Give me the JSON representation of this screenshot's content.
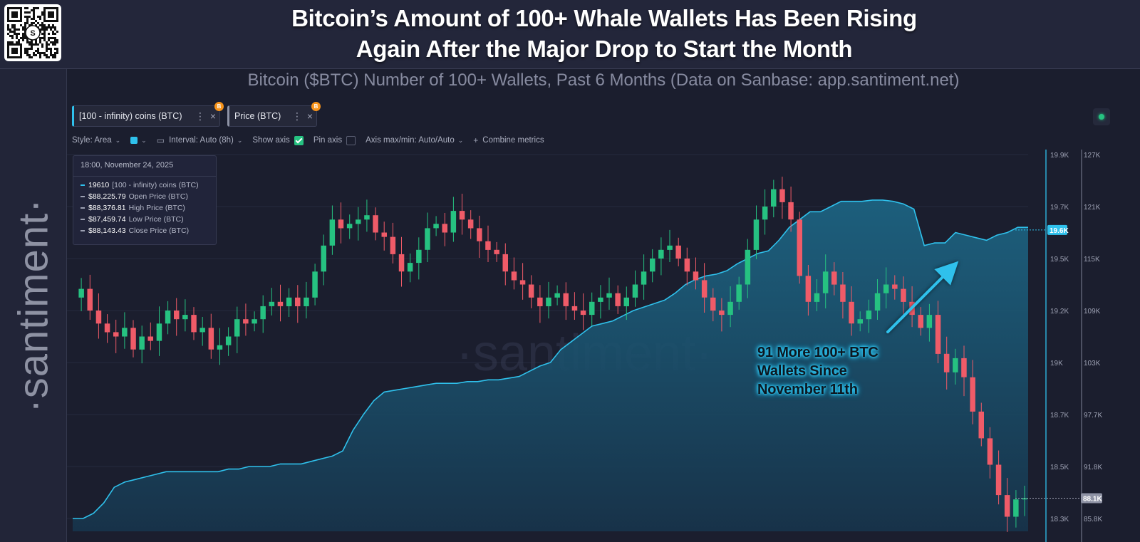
{
  "header": {
    "title_line1": "Bitcoin’s Amount of 100+ Whale Wallets Has Been Rising",
    "title_line2": "Again After the Major Drop to Start the Month",
    "qr_icon": "qr-code-santiment",
    "qr_center": "S"
  },
  "sidebar": {
    "logo_text": "·santiment·"
  },
  "subtitle": "Bitcoin ($BTC) Number of 100+ Wallets, Past 6 Months (Data on Sanbase: app.santiment.net)",
  "metrics": [
    {
      "label": "[100 - infinity) coins (BTC)",
      "color": "#2fc1ec",
      "badge": "B"
    },
    {
      "label": "Price (BTC)",
      "color": "#8e93a5",
      "badge": "B"
    }
  ],
  "toolbar": {
    "style": "Style: Area",
    "interval": "Interval: Auto (8h)",
    "show_axis": "Show axis",
    "pin_axis": "Pin axis",
    "axis_maxmin": "Axis max/min: Auto/Auto",
    "combine": "Combine metrics"
  },
  "tooltip": {
    "time": "18:00, November 24, 2025",
    "rows": [
      {
        "value": "19610",
        "name": "[100 - infinity) coins (BTC)",
        "color": "#2fc1ec"
      },
      {
        "value": "$88,225.79",
        "name": "Open Price (BTC)",
        "color": "#9da1b3"
      },
      {
        "value": "$88,376.81",
        "name": "High Price (BTC)",
        "color": "#9da1b3"
      },
      {
        "value": "$87,459.74",
        "name": "Low Price (BTC)",
        "color": "#9da1b3"
      },
      {
        "value": "$88,143.43",
        "name": "Close Price (BTC)",
        "color": "#9da1b3"
      }
    ]
  },
  "annotation": {
    "line1": "91 More 100+ BTC",
    "line2": "Wallets Since",
    "line3": "November 11th"
  },
  "watermark": "·santiment·",
  "colors": {
    "wallets": "#2fc1ec",
    "candle_up": "#26c281",
    "candle_down": "#ef5b68",
    "background": "#1b1e2e"
  },
  "chart_data": {
    "type": "area",
    "title": "Bitcoin ($BTC) Number of 100+ Wallets, Past 6 Months",
    "left_axis": {
      "name": "[100 - infinity) coins (BTC)",
      "ticks": [
        "19.9K",
        "19.7K",
        "19.5K",
        "19.2K",
        "19K",
        "18.7K",
        "18.5K",
        "18.3K"
      ],
      "tick_values": [
        19900,
        19700,
        19500,
        19200,
        19000,
        18700,
        18500,
        18300
      ],
      "current_label": "19.6K",
      "current": 19610
    },
    "right_axis": {
      "name": "Price (BTC)",
      "ticks": [
        "127K",
        "121K",
        "115K",
        "109K",
        "103K",
        "97.7K",
        "91.8K",
        "85.8K"
      ],
      "tick_values": [
        127000,
        121000,
        115000,
        109000,
        103000,
        97700,
        91800,
        85800
      ],
      "current_label": "88.1K",
      "current": 88143
    },
    "wallets_series": {
      "name": "[100 - infinity) coins (BTC)",
      "values": [
        18300,
        18300,
        18320,
        18360,
        18420,
        18440,
        18450,
        18460,
        18470,
        18480,
        18480,
        18480,
        18480,
        18480,
        18480,
        18490,
        18490,
        18500,
        18500,
        18500,
        18510,
        18510,
        18510,
        18520,
        18530,
        18540,
        18560,
        18640,
        18700,
        18780,
        18830,
        18840,
        18850,
        18860,
        18870,
        18880,
        18880,
        18880,
        18890,
        18890,
        18900,
        18900,
        18910,
        18920,
        18950,
        18980,
        19000,
        19050,
        19080,
        19110,
        19140,
        19150,
        19160,
        19180,
        19200,
        19220,
        19240,
        19260,
        19300,
        19350,
        19380,
        19400,
        19410,
        19430,
        19470,
        19500,
        19520,
        19530,
        19570,
        19620,
        19650,
        19680,
        19680,
        19700,
        19720,
        19720,
        19720,
        19725,
        19725,
        19720,
        19710,
        19690,
        19550,
        19560,
        19560,
        19600,
        19590,
        19580,
        19570,
        19590,
        19600,
        19620,
        19620
      ]
    },
    "price_series": {
      "name": "Price (BTC)",
      "type": "candlestick",
      "values": [
        110500,
        111500,
        109000,
        107500,
        106500,
        106000,
        107000,
        104500,
        106000,
        105500,
        107500,
        109000,
        108000,
        108500,
        106500,
        107000,
        104500,
        105000,
        106000,
        108000,
        107500,
        108000,
        109500,
        110000,
        109500,
        110500,
        109500,
        110500,
        113500,
        116500,
        119500,
        118500,
        119000,
        119500,
        120000,
        118000,
        117500,
        115500,
        113500,
        114500,
        116000,
        118500,
        119000,
        118000,
        120500,
        119500,
        118500,
        117000,
        116000,
        115500,
        113500,
        112500,
        112000,
        110500,
        109500,
        110500,
        111000,
        109500,
        109000,
        108500,
        110000,
        110500,
        111000,
        109500,
        110500,
        112000,
        113500,
        115000,
        116000,
        116500,
        115000,
        113500,
        112500,
        110500,
        109000,
        108500,
        110000,
        112000,
        116000,
        119500,
        121000,
        123000,
        121500,
        119500,
        113000,
        110000,
        111000,
        113500,
        112000,
        110000,
        107500,
        108000,
        109000,
        111000,
        112000,
        111500,
        110000,
        108500,
        107000,
        108500,
        104000,
        102000,
        103500,
        101500,
        98000,
        95000,
        92000,
        88500,
        86000,
        88000,
        88143
      ]
    }
  }
}
